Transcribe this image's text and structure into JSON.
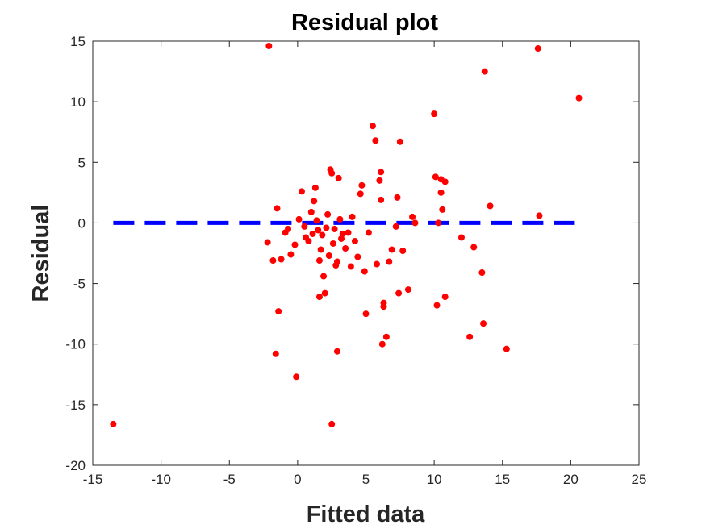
{
  "chart_data": {
    "type": "scatter",
    "title": "Residual plot",
    "xlabel": "Fitted data",
    "ylabel": "Residual",
    "xlim": [
      -15,
      25
    ],
    "ylim": [
      -20,
      15
    ],
    "xticks": [
      -15,
      -10,
      -5,
      0,
      5,
      10,
      15,
      20,
      25
    ],
    "yticks": [
      -20,
      -15,
      -10,
      -5,
      0,
      5,
      10,
      15
    ],
    "grid": false,
    "marker_color": "#ff0000",
    "reference_line_color": "#0000ff",
    "reference_line": {
      "y": 0,
      "x_range": [
        -13.5,
        20.6
      ],
      "style": "dashed"
    },
    "points": [
      [
        -13.5,
        -16.6
      ],
      [
        -2.1,
        14.6
      ],
      [
        -1.5,
        1.2
      ],
      [
        -1.6,
        -10.8
      ],
      [
        -1.4,
        -7.3
      ],
      [
        -1.8,
        -3.1
      ],
      [
        -2.2,
        -1.6
      ],
      [
        -1.2,
        -3.0
      ],
      [
        -0.9,
        -0.8
      ],
      [
        -0.7,
        -0.5
      ],
      [
        -0.5,
        -2.6
      ],
      [
        -0.2,
        -1.8
      ],
      [
        -0.1,
        -12.7
      ],
      [
        0.1,
        0.3
      ],
      [
        0.3,
        2.6
      ],
      [
        0.5,
        -0.3
      ],
      [
        0.6,
        -1.2
      ],
      [
        0.8,
        -1.5
      ],
      [
        1.0,
        0.9
      ],
      [
        1.1,
        -0.9
      ],
      [
        1.2,
        1.8
      ],
      [
        1.3,
        2.9
      ],
      [
        1.4,
        0.2
      ],
      [
        1.5,
        -0.6
      ],
      [
        1.6,
        -3.1
      ],
      [
        1.6,
        -6.1
      ],
      [
        1.7,
        -2.2
      ],
      [
        1.8,
        -1.0
      ],
      [
        1.9,
        -4.4
      ],
      [
        2.0,
        -5.8
      ],
      [
        2.1,
        -0.4
      ],
      [
        2.2,
        0.7
      ],
      [
        2.3,
        -2.7
      ],
      [
        2.4,
        4.4
      ],
      [
        2.5,
        4.1
      ],
      [
        2.5,
        -16.6
      ],
      [
        2.6,
        -1.7
      ],
      [
        2.7,
        -0.5
      ],
      [
        2.8,
        -3.5
      ],
      [
        2.9,
        -10.6
      ],
      [
        2.9,
        -3.2
      ],
      [
        3.0,
        3.7
      ],
      [
        3.1,
        0.3
      ],
      [
        3.2,
        -1.3
      ],
      [
        3.3,
        -0.9
      ],
      [
        3.5,
        -2.1
      ],
      [
        3.7,
        -0.8
      ],
      [
        3.9,
        -3.6
      ],
      [
        4.0,
        0.5
      ],
      [
        4.2,
        -1.5
      ],
      [
        4.4,
        -2.8
      ],
      [
        4.6,
        2.4
      ],
      [
        4.7,
        3.1
      ],
      [
        4.9,
        -4.0
      ],
      [
        5.0,
        -7.5
      ],
      [
        5.2,
        -0.8
      ],
      [
        5.5,
        8.0
      ],
      [
        5.7,
        6.8
      ],
      [
        5.8,
        -3.4
      ],
      [
        6.0,
        3.5
      ],
      [
        6.1,
        4.2
      ],
      [
        6.1,
        1.9
      ],
      [
        6.2,
        -10.0
      ],
      [
        6.3,
        -6.6
      ],
      [
        6.3,
        -6.9
      ],
      [
        6.5,
        -9.4
      ],
      [
        6.7,
        -3.2
      ],
      [
        6.9,
        -2.2
      ],
      [
        7.2,
        -0.3
      ],
      [
        7.3,
        2.1
      ],
      [
        7.4,
        -5.8
      ],
      [
        7.5,
        6.7
      ],
      [
        7.7,
        -2.3
      ],
      [
        8.1,
        -5.5
      ],
      [
        8.4,
        0.5
      ],
      [
        8.6,
        0.0
      ],
      [
        10.0,
        9.0
      ],
      [
        10.1,
        3.8
      ],
      [
        10.2,
        -6.8
      ],
      [
        10.3,
        0.0
      ],
      [
        10.5,
        3.6
      ],
      [
        10.5,
        2.5
      ],
      [
        10.6,
        1.1
      ],
      [
        10.8,
        3.4
      ],
      [
        10.8,
        -6.1
      ],
      [
        12.0,
        -1.2
      ],
      [
        12.6,
        -9.4
      ],
      [
        12.9,
        -2.0
      ],
      [
        13.5,
        -4.1
      ],
      [
        13.6,
        -8.3
      ],
      [
        13.7,
        12.5
      ],
      [
        14.1,
        1.4
      ],
      [
        15.3,
        -10.4
      ],
      [
        17.6,
        14.4
      ],
      [
        17.7,
        0.6
      ],
      [
        20.6,
        10.3
      ]
    ]
  }
}
